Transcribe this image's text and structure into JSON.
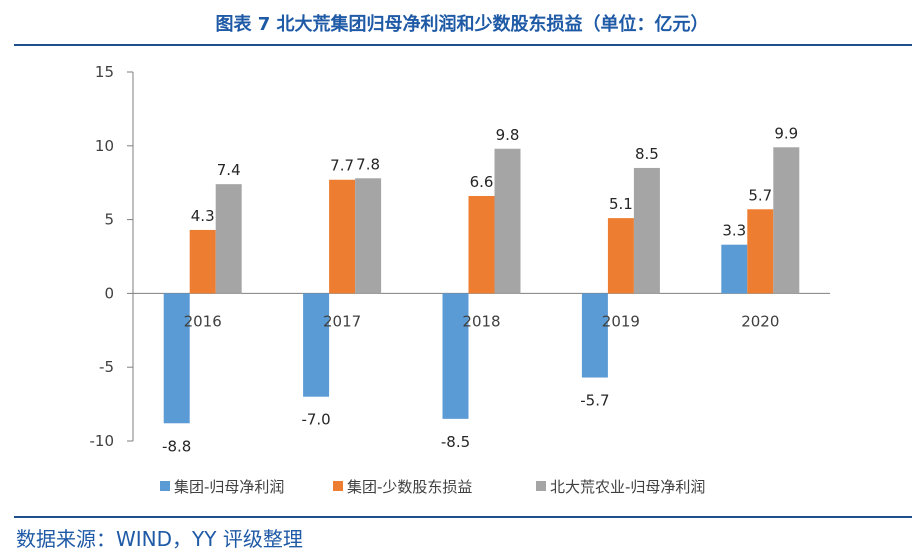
{
  "chart_data": {
    "type": "bar",
    "title": "图表 7 北大荒集团归母净利润和少数股东损益（单位：亿元）",
    "categories": [
      "2016",
      "2017",
      "2018",
      "2019",
      "2020"
    ],
    "series": [
      {
        "name": "集团-归母净利润",
        "color": "#5b9bd5",
        "values": [
          -8.8,
          -7.0,
          -8.5,
          -5.7,
          3.3
        ]
      },
      {
        "name": "集团-少数股东损益",
        "color": "#ed7d31",
        "values": [
          4.3,
          7.7,
          6.6,
          5.1,
          5.7
        ]
      },
      {
        "name": "北大荒农业-归母净利润",
        "color": "#a5a5a5",
        "values": [
          7.4,
          7.8,
          9.8,
          8.5,
          9.9
        ]
      }
    ],
    "ylim": [
      -10,
      15
    ],
    "yticks": [
      "15",
      "10",
      "5",
      "0",
      "-5",
      "-10"
    ],
    "xlabel": "",
    "ylabel": "",
    "legend": "bottom"
  },
  "source": "数据来源：WIND，YY 评级整理"
}
